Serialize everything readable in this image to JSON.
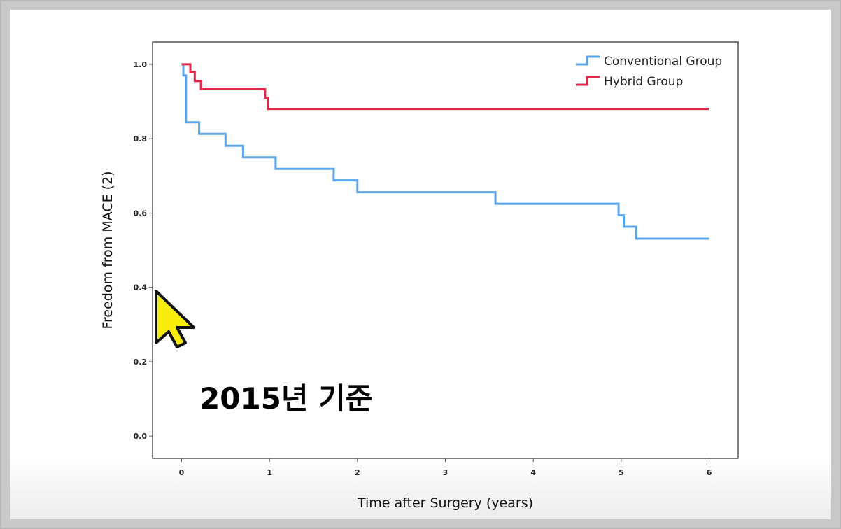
{
  "annotation": "2015년 기준",
  "icons": {
    "cursor": "mouse-pointer-icon"
  },
  "chart_data": {
    "type": "line",
    "step": true,
    "xlabel": "Time after Surgery (years)",
    "ylabel": "Freedom from MACE (2)",
    "xlim": [
      -0.33,
      6.33
    ],
    "ylim": [
      -0.06,
      1.06
    ],
    "xticks": [
      0,
      1,
      2,
      3,
      4,
      5,
      6
    ],
    "yticks": [
      0.0,
      0.2,
      0.4,
      0.6,
      0.8,
      1.0
    ],
    "ytick_labels": [
      "0.0",
      "0.2",
      "0.4",
      "0.6",
      "0.8",
      "1.0"
    ],
    "grid": false,
    "legend_position": "top-right",
    "series": [
      {
        "name": "Conventional Group",
        "color": "#5aa5ea",
        "x": [
          0,
          0.02,
          0.05,
          0.2,
          0.5,
          0.7,
          1.07,
          1.73,
          2.0,
          3.57,
          4.97,
          5.03,
          5.17,
          6.0
        ],
        "y": [
          1.0,
          0.97,
          0.844,
          0.813,
          0.781,
          0.75,
          0.719,
          0.688,
          0.656,
          0.625,
          0.594,
          0.563,
          0.531,
          0.531
        ]
      },
      {
        "name": "Hybrid Group",
        "color": "#e0284a",
        "x": [
          0,
          0.1,
          0.15,
          0.22,
          0.95,
          0.98,
          6.0
        ],
        "y": [
          1.0,
          0.98,
          0.955,
          0.933,
          0.91,
          0.88,
          0.88
        ]
      }
    ]
  }
}
